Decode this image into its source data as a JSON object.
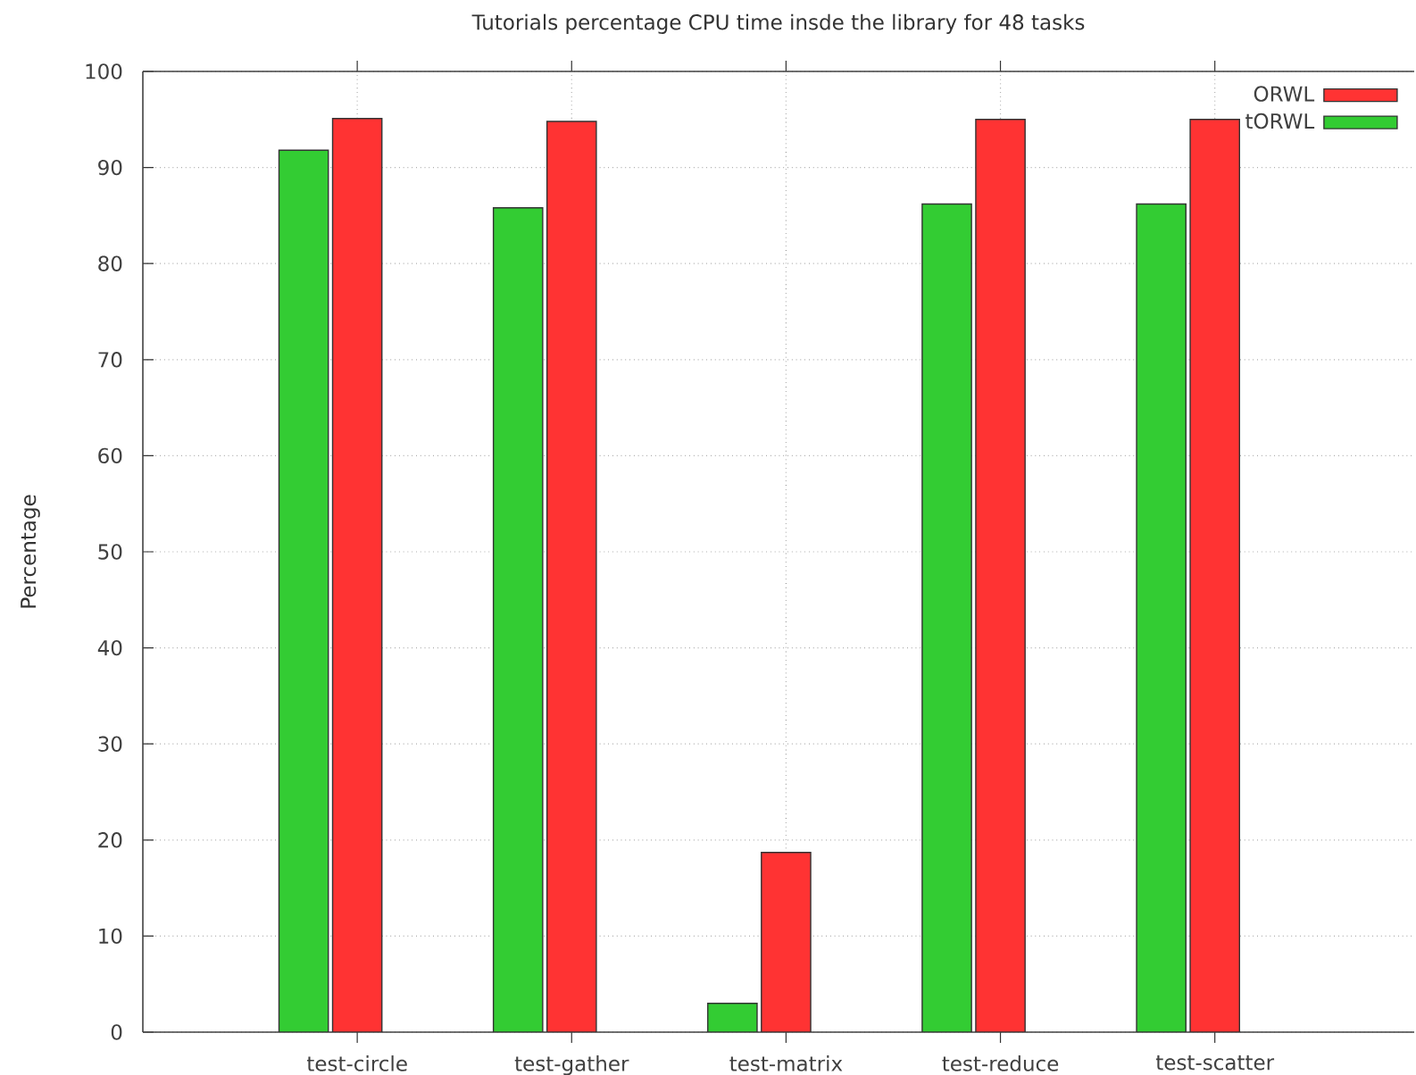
{
  "chart_data": {
    "type": "bar",
    "title": "Tutorials percentage CPU time insde the library for 48 tasks",
    "ylabel": "Percentage",
    "categories": [
      "test-circle",
      "test-gather",
      "test-matrix",
      "test-reduce",
      "test-scatter"
    ],
    "series": [
      {
        "name": "tORWL",
        "color": "#33cc33",
        "values": [
          91.8,
          85.8,
          3.0,
          86.2,
          86.2
        ]
      },
      {
        "name": "ORWL",
        "color": "#ff3333",
        "values": [
          95.1,
          94.8,
          18.7,
          95.0,
          95.0
        ]
      }
    ],
    "ylim": [
      0,
      100
    ],
    "yticks": [
      0,
      10,
      20,
      30,
      40,
      50,
      60,
      70,
      80,
      90,
      100
    ],
    "grid": true,
    "legend": "top right"
  }
}
